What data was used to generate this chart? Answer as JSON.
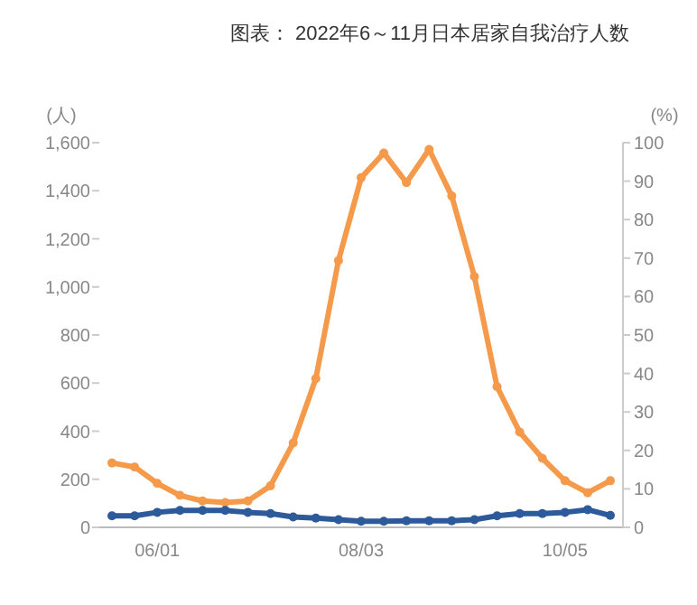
{
  "chart_data": {
    "type": "line",
    "title": "图表： 2022年6～11月日本居家自我治疗人数",
    "ylabel": "(人)",
    "y2label": "(%)",
    "categories": [
      null,
      null,
      "06/01",
      null,
      null,
      null,
      null,
      null,
      null,
      null,
      null,
      "08/03",
      null,
      null,
      null,
      null,
      null,
      null,
      null,
      null,
      "10/05",
      null,
      null
    ],
    "series": [
      {
        "color": "#f5994a",
        "values": [
          268,
          251,
          183,
          133,
          110,
          103,
          110,
          173,
          351,
          619,
          1110,
          1454,
          1557,
          1434,
          1572,
          1378,
          1043,
          585,
          396,
          287,
          194,
          144,
          194
        ]
      },
      {
        "color": "#2c5a9a",
        "axis": "y2",
        "values": [
          3.0,
          3.0,
          3.9,
          4.4,
          4.4,
          4.4,
          3.9,
          3.6,
          2.7,
          2.4,
          2.0,
          1.6,
          1.6,
          1.7,
          1.7,
          1.7,
          2.0,
          3.0,
          3.6,
          3.6,
          3.9,
          4.6,
          3.1
        ]
      }
    ],
    "ylim": [
      0,
      1600
    ],
    "yticks": [
      0,
      200,
      400,
      600,
      800,
      {
        "value": 1000,
        "label": "1,000"
      },
      {
        "value": 1200,
        "label": "1,200"
      },
      {
        "value": 1400,
        "label": "1,400"
      },
      {
        "value": 1600,
        "label": "1,600"
      }
    ],
    "y2lim": [
      0,
      100
    ],
    "y2ticks": [
      0,
      10,
      20,
      30,
      40,
      50,
      60,
      70,
      80,
      90,
      100
    ],
    "marker": "circle",
    "grid": false
  }
}
